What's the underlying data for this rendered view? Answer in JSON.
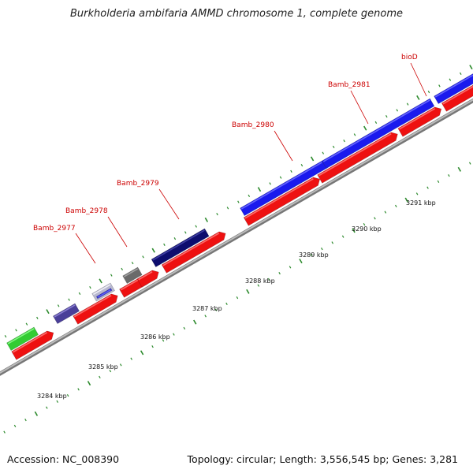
{
  "title": "Burkholderia ambifaria AMMD chromosome 1, complete genome",
  "footer": {
    "accession_label": "Accession:",
    "accession": "NC_008390",
    "topology_label": "Topology:",
    "topology": "circular",
    "length_label": "Length:",
    "length": "3,556,545 bp",
    "genes_label": "Genes:",
    "genes": "3,281"
  },
  "colors": {
    "forward_cds": "#1a1aee",
    "reverse_cds": "#ee1111",
    "backbone": "#999999",
    "tick": "#2e8b2e",
    "label": "#cc0000"
  },
  "genes": [
    {
      "name": "Bamb_2977",
      "strand": "forward",
      "color": "#2a2a8a"
    },
    {
      "name": "Bamb_2978",
      "strand": "forward",
      "color": "#666666"
    },
    {
      "name": "Bamb_2979",
      "strand": "forward",
      "color": "#0d0d6e"
    },
    {
      "name": "Bamb_2980",
      "strand": "forward",
      "color": "#1a1aee"
    },
    {
      "name": "Bamb_2981",
      "strand": "forward",
      "color": "#1a1aee"
    },
    {
      "name": "bioD",
      "strand": "forward",
      "color": "#1a1aee"
    }
  ],
  "ruler": [
    "3284 kbp",
    "3285 kbp",
    "3286 kbp",
    "3287 kbp",
    "3288 kbp",
    "3289 kbp",
    "3290 kbp",
    "3291 kbp"
  ]
}
